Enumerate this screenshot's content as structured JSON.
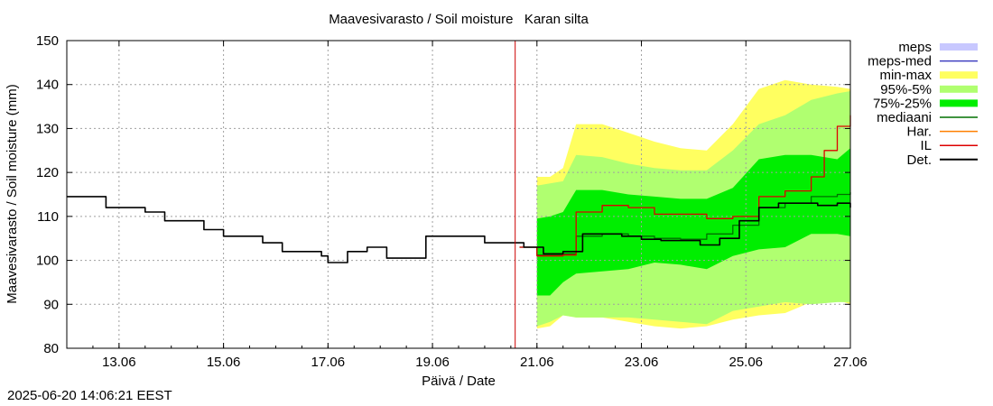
{
  "chart_data": {
    "type": "area",
    "title": "Maavesivarasto / Soil moisture   Karan silta",
    "xlabel": "Päivä / Date",
    "ylabel": "Maavesivarasto / Soil moisture (mm)",
    "ylim": [
      80,
      150
    ],
    "yticks": [
      80,
      90,
      100,
      110,
      120,
      130,
      140,
      150
    ],
    "xlim": [
      "2025-06-12 00:00",
      "2025-06-27 00:00"
    ],
    "xticks": [
      "13.06",
      "15.06",
      "17.06",
      "19.06",
      "21.06",
      "23.06",
      "25.06",
      "27.06"
    ],
    "grid": true,
    "legend_position": "right",
    "now": "2025-06-20 14:00",
    "colors": {
      "meps": "#c8c8ff",
      "meps_med": "#4040c0",
      "min_max": "#ffff60",
      "p95_5": "#b0ff70",
      "p75_25": "#00ee00",
      "mediaani": "#007000",
      "har": "#ff8000",
      "il": "#dd0000",
      "det": "#000000",
      "now_line": "#cc0000"
    },
    "legend": [
      "meps",
      "meps-med",
      "min-max",
      "95%-5%",
      "75%-25%",
      "mediaani",
      "Har.",
      "IL",
      "Det."
    ],
    "series": [
      {
        "name": "Det.",
        "x": [
          "2025-06-12 00:00",
          "2025-06-12 09:00",
          "2025-06-12 18:00",
          "2025-06-13 03:00",
          "2025-06-13 12:00",
          "2025-06-13 21:00",
          "2025-06-14 06:00",
          "2025-06-14 15:00",
          "2025-06-15 00:00",
          "2025-06-15 09:00",
          "2025-06-15 18:00",
          "2025-06-16 03:00",
          "2025-06-16 12:00",
          "2025-06-16 21:00",
          "2025-06-17 00:00",
          "2025-06-17 09:00",
          "2025-06-17 18:00",
          "2025-06-18 03:00",
          "2025-06-18 12:00",
          "2025-06-18 21:00",
          "2025-06-19 06:00",
          "2025-06-19 15:00",
          "2025-06-20 00:00",
          "2025-06-20 09:00",
          "2025-06-20 18:00",
          "2025-06-21 03:00",
          "2025-06-21 12:00",
          "2025-06-21 21:00",
          "2025-06-22 06:00",
          "2025-06-22 15:00",
          "2025-06-23 00:00",
          "2025-06-23 09:00",
          "2025-06-23 18:00",
          "2025-06-24 03:00",
          "2025-06-24 12:00",
          "2025-06-24 21:00",
          "2025-06-25 06:00",
          "2025-06-25 15:00",
          "2025-06-26 00:00",
          "2025-06-26 09:00",
          "2025-06-26 18:00",
          "2025-06-27 00:00"
        ],
        "y": [
          114.5,
          114.5,
          112.0,
          112.0,
          111.0,
          109.0,
          109.0,
          107.0,
          105.5,
          105.5,
          104.0,
          102.0,
          102.0,
          101.0,
          99.5,
          102.0,
          103.0,
          100.5,
          100.5,
          105.5,
          105.5,
          105.5,
          104.0,
          104.0,
          103.0,
          101.5,
          102.0,
          106.0,
          106.0,
          105.5,
          104.8,
          104.5,
          104.5,
          103.5,
          105.0,
          109.0,
          112.0,
          113.0,
          113.0,
          112.5,
          113.0,
          112.0
        ]
      },
      {
        "name": "IL",
        "x": [
          "2025-06-20 16:00",
          "2025-06-21 00:00",
          "2025-06-21 12:00",
          "2025-06-21 18:00",
          "2025-06-22 06:00",
          "2025-06-22 18:00",
          "2025-06-23 06:00",
          "2025-06-23 18:00",
          "2025-06-24 06:00",
          "2025-06-24 18:00",
          "2025-06-25 06:00",
          "2025-06-25 18:00",
          "2025-06-26 00:00",
          "2025-06-26 06:00",
          "2025-06-26 12:00",
          "2025-06-26 18:00",
          "2025-06-27 00:00"
        ],
        "y": [
          103.0,
          101.0,
          101.2,
          111.0,
          112.5,
          112.0,
          110.5,
          110.5,
          109.5,
          110.0,
          114.5,
          115.8,
          115.8,
          119.0,
          125.0,
          130.5,
          133.0
        ]
      },
      {
        "name": "mediaani",
        "x": [
          "2025-06-20 16:00",
          "2025-06-21 00:00",
          "2025-06-21 12:00",
          "2025-06-21 18:00",
          "2025-06-22 06:00",
          "2025-06-22 18:00",
          "2025-06-23 06:00",
          "2025-06-23 18:00",
          "2025-06-24 06:00",
          "2025-06-24 18:00",
          "2025-06-25 06:00",
          "2025-06-25 18:00",
          "2025-06-26 06:00",
          "2025-06-26 18:00",
          "2025-06-27 00:00"
        ],
        "y": [
          103.0,
          101.2,
          101.5,
          105.5,
          106.0,
          105.5,
          105.0,
          104.8,
          106.0,
          108.0,
          112.0,
          113.0,
          114.5,
          115.0,
          115.5
        ]
      }
    ],
    "bands": [
      {
        "name": "min-max",
        "x": [
          "2025-06-21 00:00",
          "2025-06-21 06:00",
          "2025-06-21 12:00",
          "2025-06-21 18:00",
          "2025-06-22 06:00",
          "2025-06-22 18:00",
          "2025-06-23 06:00",
          "2025-06-23 18:00",
          "2025-06-24 06:00",
          "2025-06-24 18:00",
          "2025-06-25 06:00",
          "2025-06-25 18:00",
          "2025-06-26 06:00",
          "2025-06-26 18:00",
          "2025-06-27 00:00"
        ],
        "upper": [
          119.0,
          119.0,
          121.0,
          131.0,
          131.0,
          129.0,
          127.0,
          125.5,
          125.0,
          131.0,
          139.0,
          141.0,
          140.0,
          139.5,
          139.0
        ],
        "lower": [
          84.5,
          85.0,
          87.5,
          87.0,
          87.0,
          86.0,
          85.0,
          84.5,
          85.0,
          86.5,
          87.5,
          88.0,
          90.5,
          91.0,
          90.0
        ]
      },
      {
        "name": "95%-5%",
        "x": [
          "2025-06-21 00:00",
          "2025-06-21 06:00",
          "2025-06-21 12:00",
          "2025-06-21 18:00",
          "2025-06-22 06:00",
          "2025-06-22 18:00",
          "2025-06-23 06:00",
          "2025-06-23 18:00",
          "2025-06-24 06:00",
          "2025-06-24 18:00",
          "2025-06-25 06:00",
          "2025-06-25 18:00",
          "2025-06-26 06:00",
          "2025-06-26 18:00",
          "2025-06-27 00:00"
        ],
        "upper": [
          117.0,
          117.5,
          118.0,
          124.0,
          123.5,
          122.0,
          121.0,
          120.5,
          120.5,
          125.0,
          131.0,
          133.0,
          136.5,
          138.0,
          138.5
        ],
        "lower": [
          85.0,
          86.0,
          87.5,
          87.0,
          87.0,
          87.0,
          86.5,
          86.0,
          85.5,
          88.5,
          89.5,
          90.5,
          90.0,
          90.5,
          90.5
        ]
      },
      {
        "name": "75%-25%",
        "x": [
          "2025-06-21 00:00",
          "2025-06-21 06:00",
          "2025-06-21 12:00",
          "2025-06-21 18:00",
          "2025-06-22 06:00",
          "2025-06-22 18:00",
          "2025-06-23 06:00",
          "2025-06-23 18:00",
          "2025-06-24 06:00",
          "2025-06-24 18:00",
          "2025-06-25 06:00",
          "2025-06-25 18:00",
          "2025-06-26 06:00",
          "2025-06-26 18:00",
          "2025-06-27 00:00"
        ],
        "upper": [
          109.5,
          110.0,
          111.0,
          116.0,
          116.0,
          115.0,
          114.5,
          114.0,
          114.0,
          116.5,
          123.0,
          124.0,
          124.0,
          123.0,
          125.5
        ],
        "lower": [
          92.0,
          92.0,
          95.0,
          97.0,
          97.5,
          98.0,
          99.5,
          99.0,
          98.0,
          101.0,
          102.5,
          103.0,
          106.0,
          106.0,
          105.5
        ]
      }
    ],
    "timestamp": "2025-06-20 14:06:21 EEST"
  }
}
